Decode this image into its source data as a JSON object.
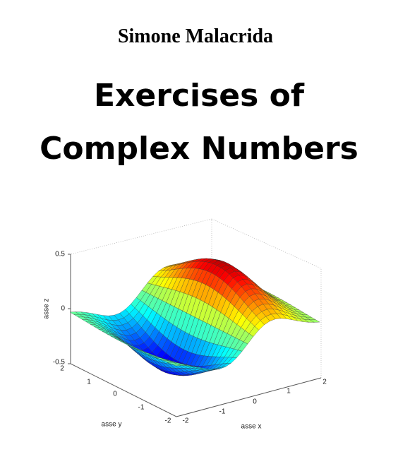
{
  "author": "Simone Malacrida",
  "title": [
    "Exercises of",
    "Complex Numbers"
  ],
  "figure": {
    "z_label": "asse z",
    "y_label": "asse y",
    "x_label": "asse x",
    "z_ticks": [
      "0.5",
      "0",
      "-0.5"
    ],
    "y_ticks": [
      "2",
      "1",
      "0",
      "-1",
      "-2"
    ],
    "x_ticks": [
      "-2",
      "-1",
      "0",
      "1",
      "2"
    ]
  }
}
